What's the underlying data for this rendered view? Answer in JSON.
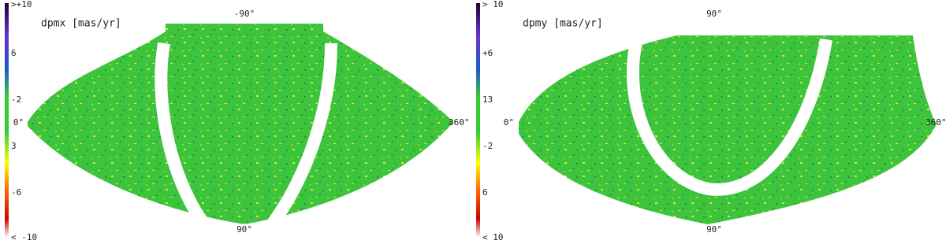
{
  "panels": [
    {
      "title": "dpmx [mas/yr]",
      "colorbar_labels": [
        ">+10",
        "6",
        "-2",
        "3",
        "-6",
        "< -10"
      ],
      "axis_labels": {
        "top": "-90°",
        "bottom": "90°",
        "left": "0°",
        "right": "360°"
      }
    },
    {
      "title": "dpmy [mas/yr]",
      "colorbar_labels": [
        "> 10",
        "+6",
        "13",
        "-2",
        "6",
        "< 10"
      ],
      "axis_labels": {
        "top": "90°",
        "bottom": "90°",
        "left": "0°",
        "right": "360°"
      }
    }
  ]
}
